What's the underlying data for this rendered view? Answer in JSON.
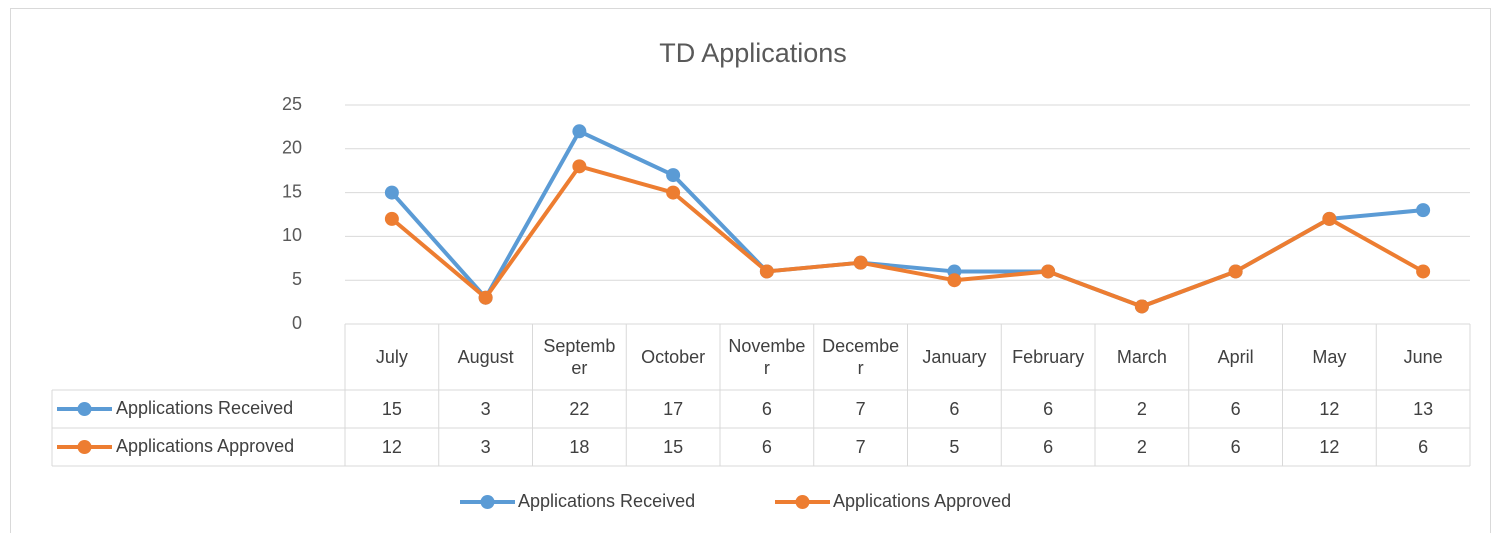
{
  "chart_data": {
    "type": "line",
    "title": "TD Applications",
    "categories": [
      "July",
      "August",
      "September",
      "October",
      "November",
      "December",
      "January",
      "February",
      "March",
      "April",
      "May",
      "June"
    ],
    "series": [
      {
        "name": "Applications Received",
        "color": "#5b9bd5",
        "values": [
          15,
          3,
          22,
          17,
          6,
          7,
          6,
          6,
          2,
          6,
          12,
          13
        ]
      },
      {
        "name": "Applications Approved",
        "color": "#ed7d31",
        "values": [
          12,
          3,
          18,
          15,
          6,
          7,
          5,
          6,
          2,
          6,
          12,
          6
        ]
      }
    ],
    "ylim": [
      0,
      25
    ],
    "yticks": [
      0,
      5,
      10,
      15,
      20,
      25
    ],
    "grid": true,
    "legend": "bottom"
  }
}
